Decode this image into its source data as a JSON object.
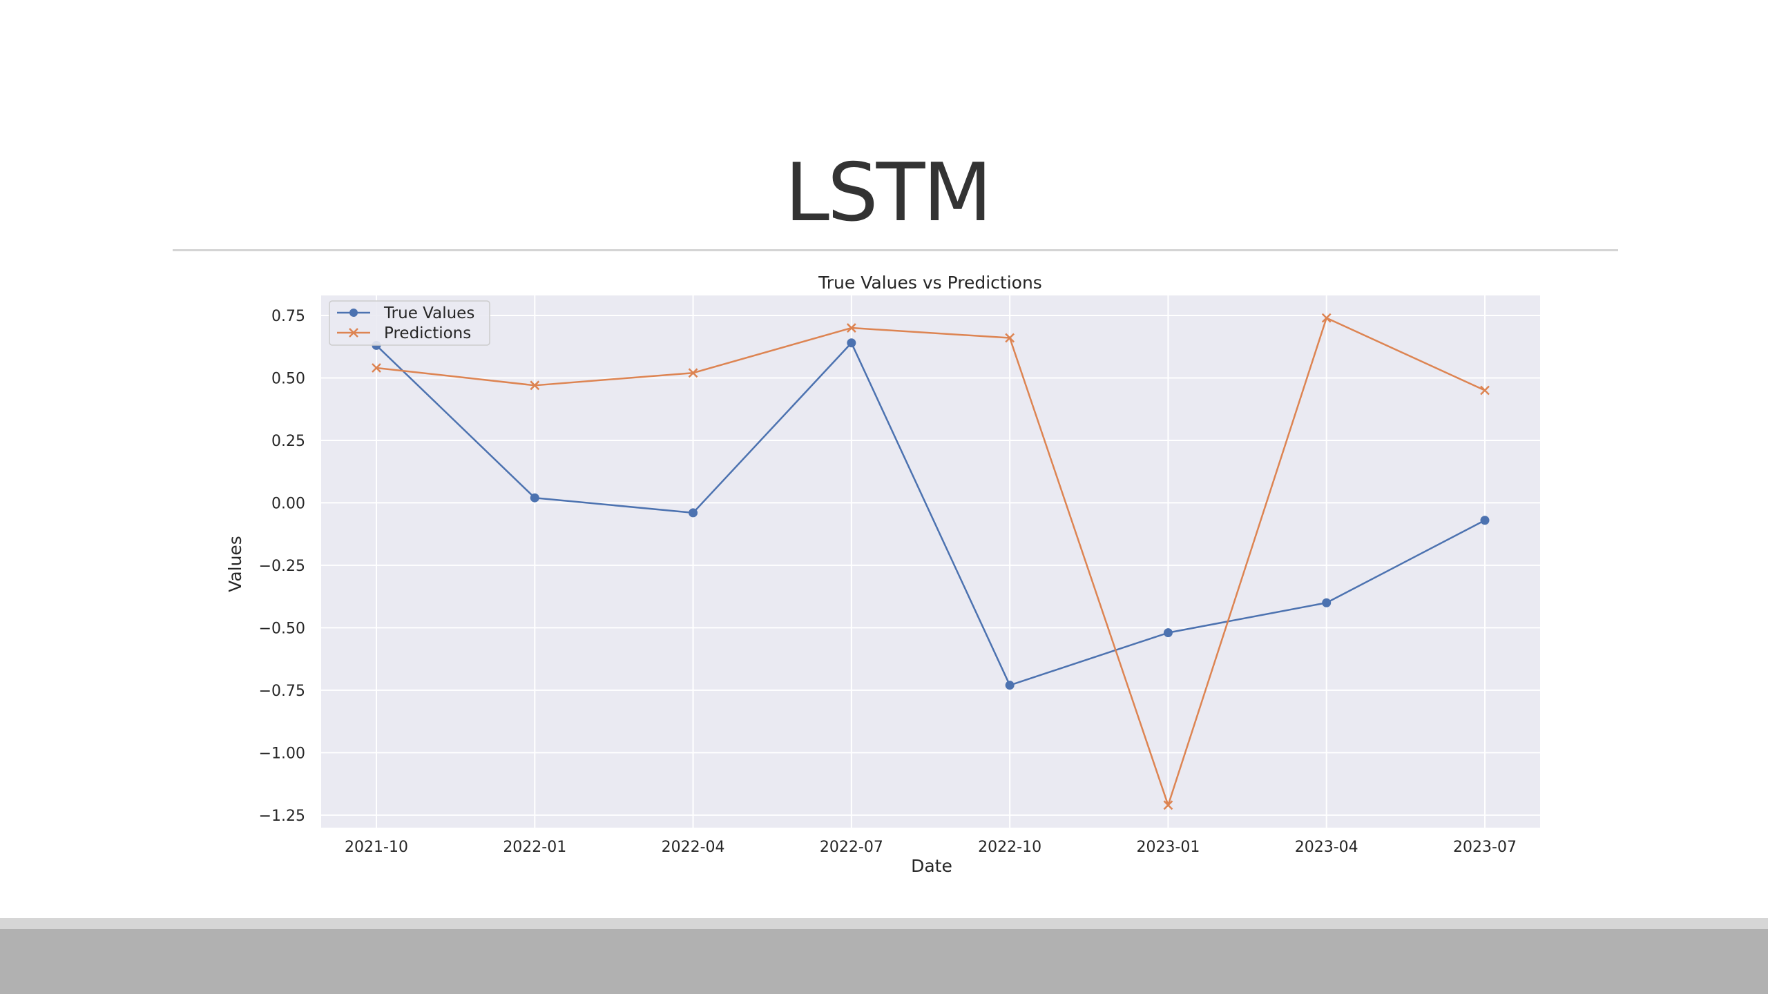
{
  "slide": {
    "title": "LSTM"
  },
  "chart_data": {
    "type": "line",
    "title": "True Values vs Predictions",
    "xlabel": "Date",
    "ylabel": "Values",
    "x": [
      "2021-10",
      "2022-01",
      "2022-04",
      "2022-07",
      "2022-10",
      "2023-01",
      "2023-04",
      "2023-07"
    ],
    "xticks": [
      "2021-10",
      "2022-01",
      "2022-04",
      "2022-07",
      "2022-10",
      "2023-01",
      "2023-04",
      "2023-07"
    ],
    "yticks": [
      0.75,
      0.5,
      0.25,
      0.0,
      -0.25,
      -0.5,
      -0.75,
      -1.0,
      -1.25
    ],
    "ytick_labels": [
      "0.75",
      "0.50",
      "0.25",
      "0.00",
      "−0.25",
      "−0.50",
      "−0.75",
      "−1.00",
      "−1.25"
    ],
    "ylim": [
      -1.3,
      0.83
    ],
    "grid": true,
    "legend_position": "top-left",
    "series": [
      {
        "name": "True Values",
        "marker": "circle",
        "color": "#4c72b0",
        "values": [
          0.63,
          0.02,
          -0.04,
          0.64,
          -0.73,
          -0.52,
          -0.4,
          -0.07
        ]
      },
      {
        "name": "Predictions",
        "marker": "x",
        "color": "#dd8452",
        "values": [
          0.54,
          0.47,
          0.52,
          0.7,
          0.66,
          -1.21,
          0.74,
          0.45
        ]
      }
    ]
  }
}
